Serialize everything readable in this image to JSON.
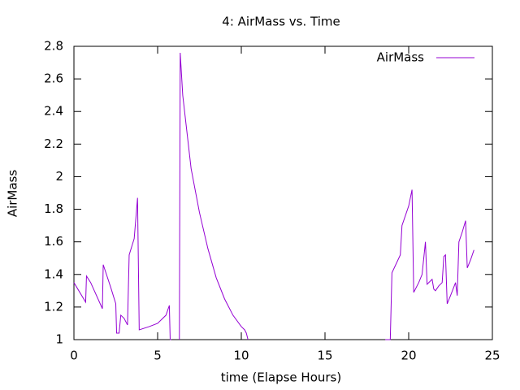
{
  "chart_data": {
    "type": "line",
    "title": "4: AirMass vs. Time",
    "x_label": "time (Elapse Hours)",
    "y_label": "AirMass",
    "x": [
      0,
      0.7,
      0.75,
      1.0,
      1.7,
      1.75,
      2.2,
      2.5,
      2.55,
      2.7,
      2.8,
      3.0,
      3.2,
      3.3,
      3.6,
      3.8,
      3.9,
      4.5,
      5.0,
      5.5,
      5.7,
      5.75,
      5.8,
      6.2,
      6.3,
      6.35,
      6.5,
      7.0,
      7.5,
      8.0,
      8.5,
      9.0,
      9.5,
      10.0,
      10.2,
      10.3,
      10.4,
      14.5,
      18.6,
      18.9,
      19.0,
      19.5,
      19.6,
      20.0,
      20.2,
      20.3,
      20.6,
      20.8,
      21.0,
      21.1,
      21.4,
      21.5,
      21.6,
      21.8,
      22.0,
      22.1,
      22.2,
      22.3,
      22.5,
      22.8,
      22.9,
      23.0,
      23.2,
      23.4,
      23.5,
      23.7,
      23.9
    ],
    "series": [
      {
        "name": "AirMass",
        "color": "#9400d3",
        "values": [
          1.35,
          1.23,
          1.39,
          1.35,
          1.19,
          1.46,
          1.32,
          1.22,
          1.04,
          1.04,
          1.15,
          1.13,
          1.09,
          1.52,
          1.62,
          1.87,
          1.06,
          1.08,
          1.1,
          1.15,
          1.21,
          1.0,
          1.0,
          null,
          1.0,
          2.76,
          2.5,
          2.05,
          1.78,
          1.56,
          1.38,
          1.25,
          1.15,
          1.08,
          1.06,
          1.04,
          1.0,
          null,
          1.0,
          1.0,
          1.41,
          1.52,
          1.7,
          1.82,
          1.92,
          1.29,
          1.35,
          1.4,
          1.6,
          1.34,
          1.37,
          1.31,
          1.3,
          1.33,
          1.35,
          1.51,
          1.52,
          1.22,
          1.27,
          1.35,
          1.27,
          1.6,
          1.66,
          1.73,
          1.44,
          1.49,
          1.55
        ]
      }
    ],
    "xlim": [
      0,
      25
    ],
    "xticks": [
      0,
      5,
      10,
      15,
      20,
      25
    ],
    "ylim": [
      1,
      2.8
    ],
    "yticks": [
      1,
      1.2,
      1.4,
      1.6,
      1.8,
      2,
      2.2,
      2.4,
      2.6,
      2.8
    ],
    "legend": "top-right"
  }
}
